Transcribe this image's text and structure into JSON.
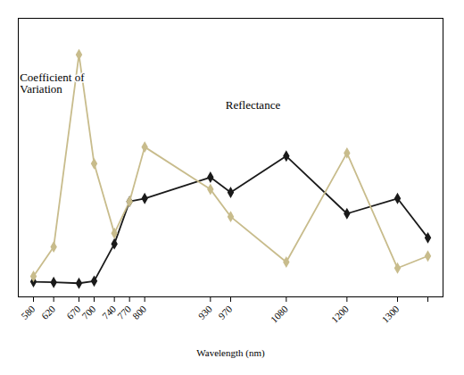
{
  "chart_data": {
    "type": "line",
    "x": [
      580,
      620,
      670,
      700,
      740,
      770,
      800,
      930,
      970,
      1080,
      1200,
      1300,
      1360
    ],
    "series": [
      {
        "color": "#1a1a1a",
        "marker": "diamond",
        "values": [
          0.03,
          0.028,
          0.025,
          0.032,
          0.155,
          0.295,
          0.305,
          0.375,
          0.325,
          0.445,
          0.255,
          0.305,
          0.175
        ]
      },
      {
        "color": "#c8bc8c",
        "marker": "diamond",
        "values": [
          0.048,
          0.145,
          0.78,
          0.42,
          0.19,
          0.295,
          0.475,
          0.335,
          0.245,
          0.095,
          0.455,
          0.075,
          0.115
        ]
      }
    ],
    "xlabel": "Wavelength (nm)",
    "xlim": [
      550,
      1390
    ],
    "ylim": [
      -0.02,
      0.9
    ],
    "xticks": [
      580,
      620,
      670,
      700,
      740,
      770,
      800,
      930,
      970,
      1080,
      1200,
      1300,
      {
        "value": 1360,
        "label": null
      }
    ],
    "tick_labels": "x",
    "annotations": [
      {
        "text": "Reflectance",
        "x": 960,
        "y": 0.6
      },
      {
        "text": "Coefficient of\nVariation",
        "x": 553,
        "y": 0.72
      }
    ]
  }
}
